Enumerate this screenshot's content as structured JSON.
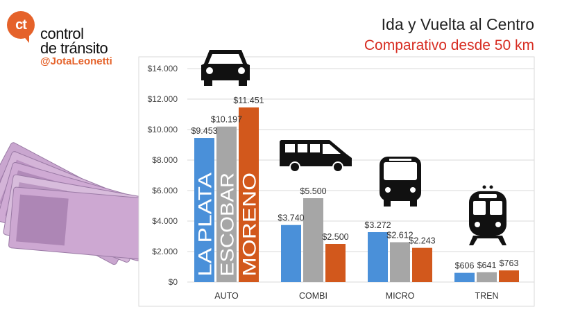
{
  "brand": {
    "logo_text": "ct",
    "line1": "control",
    "line2": "de tránsito",
    "handle": "@JotaLeonetti"
  },
  "chart_data": {
    "type": "bar",
    "title": "Ida y Vuelta al Centro",
    "subtitle": "Comparativo desde 50 km",
    "categories": [
      "AUTO",
      "COMBI",
      "MICRO",
      "TREN"
    ],
    "series": [
      {
        "name": "LA PLATA",
        "color": "#4a90d9",
        "values": [
          9453,
          3740,
          3272,
          606
        ],
        "labels": [
          "$9.453",
          "$3.740",
          "$3.272",
          "$606"
        ]
      },
      {
        "name": "ESCOBAR",
        "color": "#a6a6a6",
        "values": [
          10197,
          5500,
          2612,
          641
        ],
        "labels": [
          "$10.197",
          "$5.500",
          "$2.612",
          "$641"
        ]
      },
      {
        "name": "MORENO",
        "color": "#d2581c",
        "values": [
          11451,
          2500,
          2243,
          763
        ],
        "labels": [
          "$11.451",
          "$2.500",
          "$2.243",
          "$763"
        ]
      }
    ],
    "ylim": [
      0,
      14000
    ],
    "yticks": [
      0,
      2000,
      4000,
      6000,
      8000,
      10000,
      12000,
      14000
    ],
    "ytick_labels": [
      "$0",
      "$2.000",
      "$4.000",
      "$6.000",
      "$8.000",
      "$10.000",
      "$12.000",
      "$14.000"
    ],
    "grid": true,
    "legend": "inside-bars",
    "category_icons": [
      "car-icon",
      "van-icon",
      "bus-icon",
      "train-icon"
    ]
  }
}
